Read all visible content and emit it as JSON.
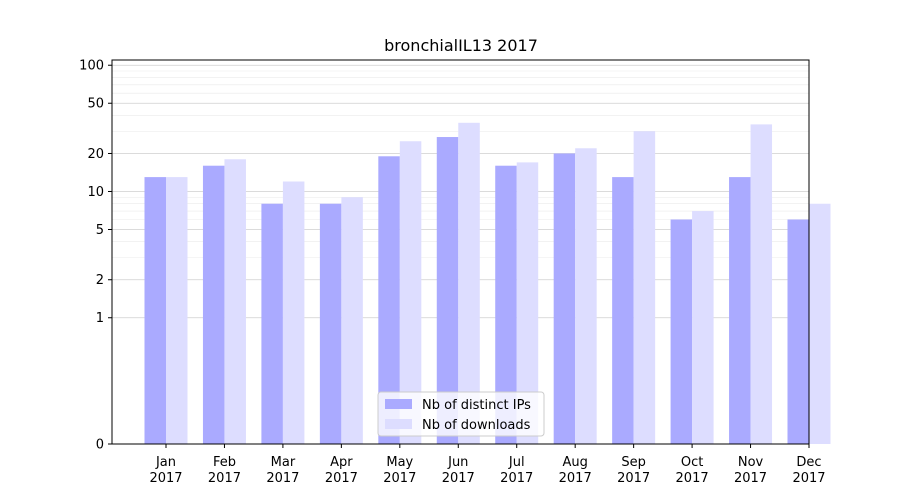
{
  "chart_data": {
    "type": "bar",
    "title": "bronchialIL13 2017",
    "xlabel": "",
    "ylabel": "",
    "y_scale": "symlog",
    "ylim": [
      0,
      110
    ],
    "y_ticks": [
      0,
      1,
      2,
      5,
      10,
      20,
      50,
      100
    ],
    "grid": "horizontal",
    "legend_position": "bottom-center",
    "categories": [
      [
        "Jan",
        "2017"
      ],
      [
        "Feb",
        "2017"
      ],
      [
        "Mar",
        "2017"
      ],
      [
        "Apr",
        "2017"
      ],
      [
        "May",
        "2017"
      ],
      [
        "Jun",
        "2017"
      ],
      [
        "Jul",
        "2017"
      ],
      [
        "Aug",
        "2017"
      ],
      [
        "Sep",
        "2017"
      ],
      [
        "Oct",
        "2017"
      ],
      [
        "Nov",
        "2017"
      ],
      [
        "Dec",
        "2017"
      ]
    ],
    "series": [
      {
        "name": "Nb of distinct IPs",
        "color": "#aaaaff",
        "values": [
          13,
          16,
          8,
          8,
          19,
          27,
          16,
          20,
          13,
          6,
          13,
          6
        ]
      },
      {
        "name": "Nb of downloads",
        "color": "#ddddff",
        "values": [
          13,
          18,
          12,
          9,
          25,
          35,
          17,
          22,
          30,
          7,
          34,
          8
        ]
      }
    ]
  }
}
